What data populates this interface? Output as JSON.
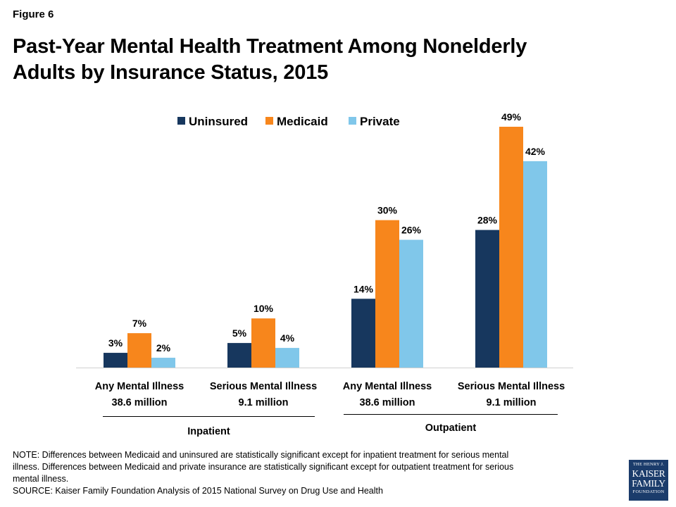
{
  "figure_label": "Figure 6",
  "title_line1": "Past-Year Mental Health Treatment Among Nonelderly",
  "title_line2": "Adults by Insurance Status, 2015",
  "colors": {
    "uninsured": "#17375e",
    "medicaid": "#f7861c",
    "private": "#80c7ea"
  },
  "chart_data": {
    "type": "bar",
    "title": "Past-Year Mental Health Treatment Among Nonelderly Adults by Insurance Status, 2015",
    "categories": [
      [
        "Any Mental Illness",
        "38.6 million"
      ],
      [
        "Serious Mental Illness",
        "9.1 million"
      ],
      [
        "Any Mental Illness",
        "38.6 million"
      ],
      [
        "Serious Mental Illness",
        "9.1 million"
      ]
    ],
    "groups": [
      {
        "label": "Inpatient",
        "categories": [
          0,
          1
        ]
      },
      {
        "label": "Outpatient",
        "categories": [
          2,
          3
        ]
      }
    ],
    "series": [
      {
        "name": "Uninsured",
        "values": [
          3,
          5,
          14,
          28
        ],
        "labels": [
          "3%",
          "5%",
          "14%",
          "28%"
        ]
      },
      {
        "name": "Medicaid",
        "values": [
          7,
          10,
          30,
          49
        ],
        "labels": [
          "7%",
          "10%",
          "30%",
          "49%"
        ]
      },
      {
        "name": "Private",
        "values": [
          2,
          4,
          26,
          42
        ],
        "labels": [
          "2%",
          "4%",
          "26%",
          "42%"
        ]
      }
    ],
    "unit": "%",
    "ylim": [
      0,
      49
    ],
    "grid": false,
    "legend": "top-center"
  },
  "note_lines": [
    "NOTE: Differences between Medicaid and uninsured are statistically significant except for inpatient treatment for serious mental",
    "illness. Differences between Medicaid and private insurance are statistically significant except for outpatient treatment for serious",
    "mental illness.",
    "SOURCE: Kaiser Family Foundation Analysis of 2015 National Survey on Drug Use and Health"
  ],
  "logo": {
    "line1": "THE HENRY J.",
    "line2": "KAISER",
    "line3": "FAMILY",
    "line4": "FOUNDATION"
  }
}
